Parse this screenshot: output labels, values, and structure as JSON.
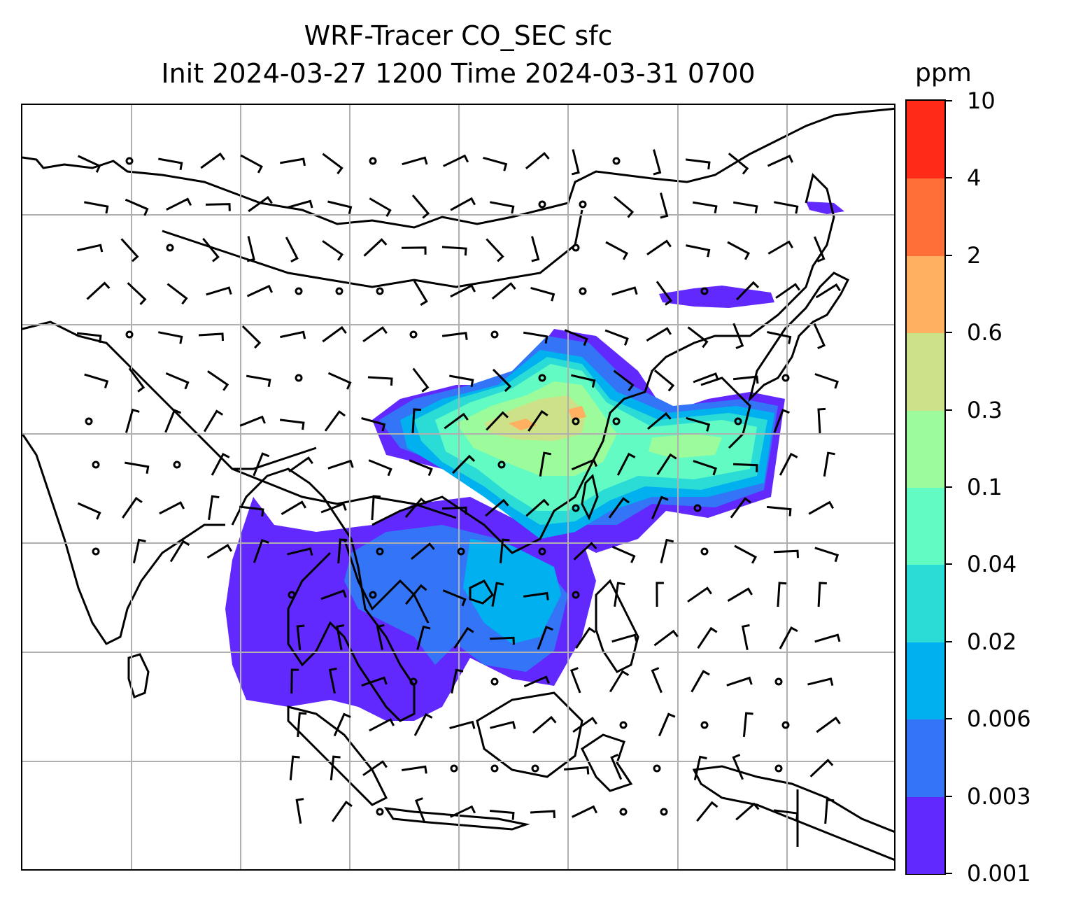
{
  "title": {
    "line1": "WRF-Tracer CO_SEC sfc",
    "line2": "Init 2024-03-27 1200 Time 2024-03-31 0700"
  },
  "colorbar": {
    "unit": "ppm",
    "levels": [
      "0.001",
      "0.003",
      "0.006",
      "0.02",
      "0.04",
      "0.1",
      "0.3",
      "0.6",
      "2",
      "4",
      "10"
    ],
    "colors": [
      "#6229ff",
      "#3375f6",
      "#00b0ef",
      "#2bdcd6",
      "#62fbc3",
      "#9cfb9a",
      "#cde188",
      "#ffb060",
      "#ff7038",
      "#ff2a18"
    ]
  },
  "map": {
    "features": [
      "coastlines",
      "country-borders",
      "lat-lon-grid",
      "wind-barbs",
      "calm-circles"
    ],
    "grid_color": "#b0b0b0"
  }
}
